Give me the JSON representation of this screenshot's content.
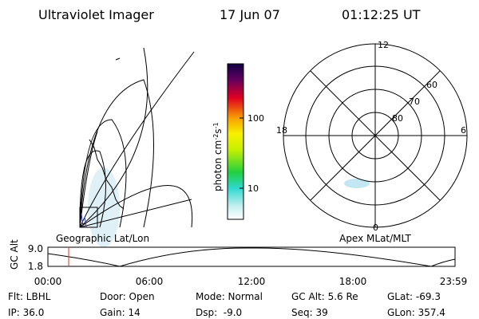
{
  "header": {
    "title": "Ultraviolet Imager",
    "date": "17 Jun 07",
    "time": "01:12:25 UT"
  },
  "map": {
    "label": "Geographic Lat/Lon"
  },
  "colorbar": {
    "label": [
      "photon cm",
      "-2",
      "s",
      "-1"
    ],
    "ticks": [
      "100",
      "10"
    ]
  },
  "polar": {
    "label": "Apex MLat/MLT",
    "hours": [
      "12",
      "18",
      "6",
      "0"
    ],
    "latitudes": [
      "60",
      "70",
      "80"
    ]
  },
  "timeline": {
    "ylabel": "GC Alt",
    "yticks": [
      "9.0",
      "1.8"
    ],
    "xticks": [
      "00:00",
      "06:00",
      "12:00",
      "18:00",
      "23:59"
    ]
  },
  "footer": {
    "rows": [
      [
        "Flt: LBHL",
        "Door: Open",
        "Mode: Normal",
        "GC Alt: 5.6 Re",
        "GLat: -69.3"
      ],
      [
        "IP: 36.0",
        "Gain: 14",
        "Dsp:  -9.0",
        "Seq: 39",
        "GLon: 357.4"
      ]
    ]
  }
}
